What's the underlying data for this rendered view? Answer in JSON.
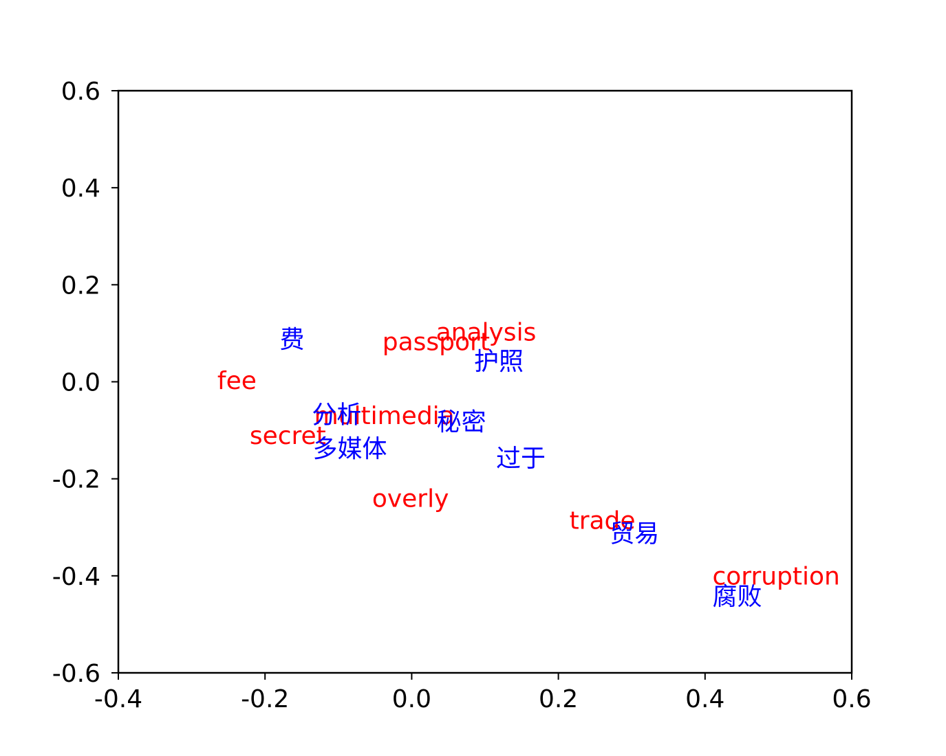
{
  "chart_data": {
    "type": "scatter",
    "title": "",
    "xlabel": "",
    "ylabel": "",
    "xlim": [
      -0.4,
      0.6
    ],
    "ylim": [
      -0.6,
      0.6
    ],
    "grid": false,
    "x_ticks": [
      "-0.4",
      "-0.2",
      "0.0",
      "0.2",
      "0.4",
      "0.6"
    ],
    "y_ticks": [
      "0.6",
      "0.4",
      "0.2",
      "0.0",
      "-0.2",
      "-0.4",
      "-0.6"
    ],
    "x_tick_values": [
      -0.4,
      -0.2,
      0.0,
      0.2,
      0.4,
      0.6
    ],
    "y_tick_values": [
      0.6,
      0.4,
      0.2,
      0.0,
      -0.2,
      -0.4,
      -0.6
    ],
    "series": [
      {
        "color": "#ff0000",
        "points": [
          {
            "label": "fee",
            "x": -0.265,
            "y": -0.015
          },
          {
            "label": "passport",
            "x": -0.04,
            "y": 0.065
          },
          {
            "label": "analysis",
            "x": 0.033,
            "y": 0.085
          },
          {
            "label": "multimedia",
            "x": -0.133,
            "y": -0.087
          },
          {
            "label": "secret",
            "x": -0.221,
            "y": -0.128
          },
          {
            "label": "overly",
            "x": -0.054,
            "y": -0.258
          },
          {
            "label": "trade",
            "x": 0.215,
            "y": -0.303
          },
          {
            "label": "corruption",
            "x": 0.41,
            "y": -0.418
          }
        ]
      },
      {
        "color": "#0000ff",
        "points": [
          {
            "label": "费",
            "x": -0.18,
            "y": 0.07
          },
          {
            "label": "护照",
            "x": 0.085,
            "y": 0.025
          },
          {
            "label": "分析",
            "x": -0.136,
            "y": -0.085
          },
          {
            "label": "秘密",
            "x": 0.034,
            "y": -0.1
          },
          {
            "label": "多媒体",
            "x": -0.135,
            "y": -0.155
          },
          {
            "label": "过于",
            "x": 0.115,
            "y": -0.175
          },
          {
            "label": "贸易",
            "x": 0.27,
            "y": -0.33
          },
          {
            "label": "腐败",
            "x": 0.41,
            "y": -0.46
          }
        ]
      }
    ]
  }
}
